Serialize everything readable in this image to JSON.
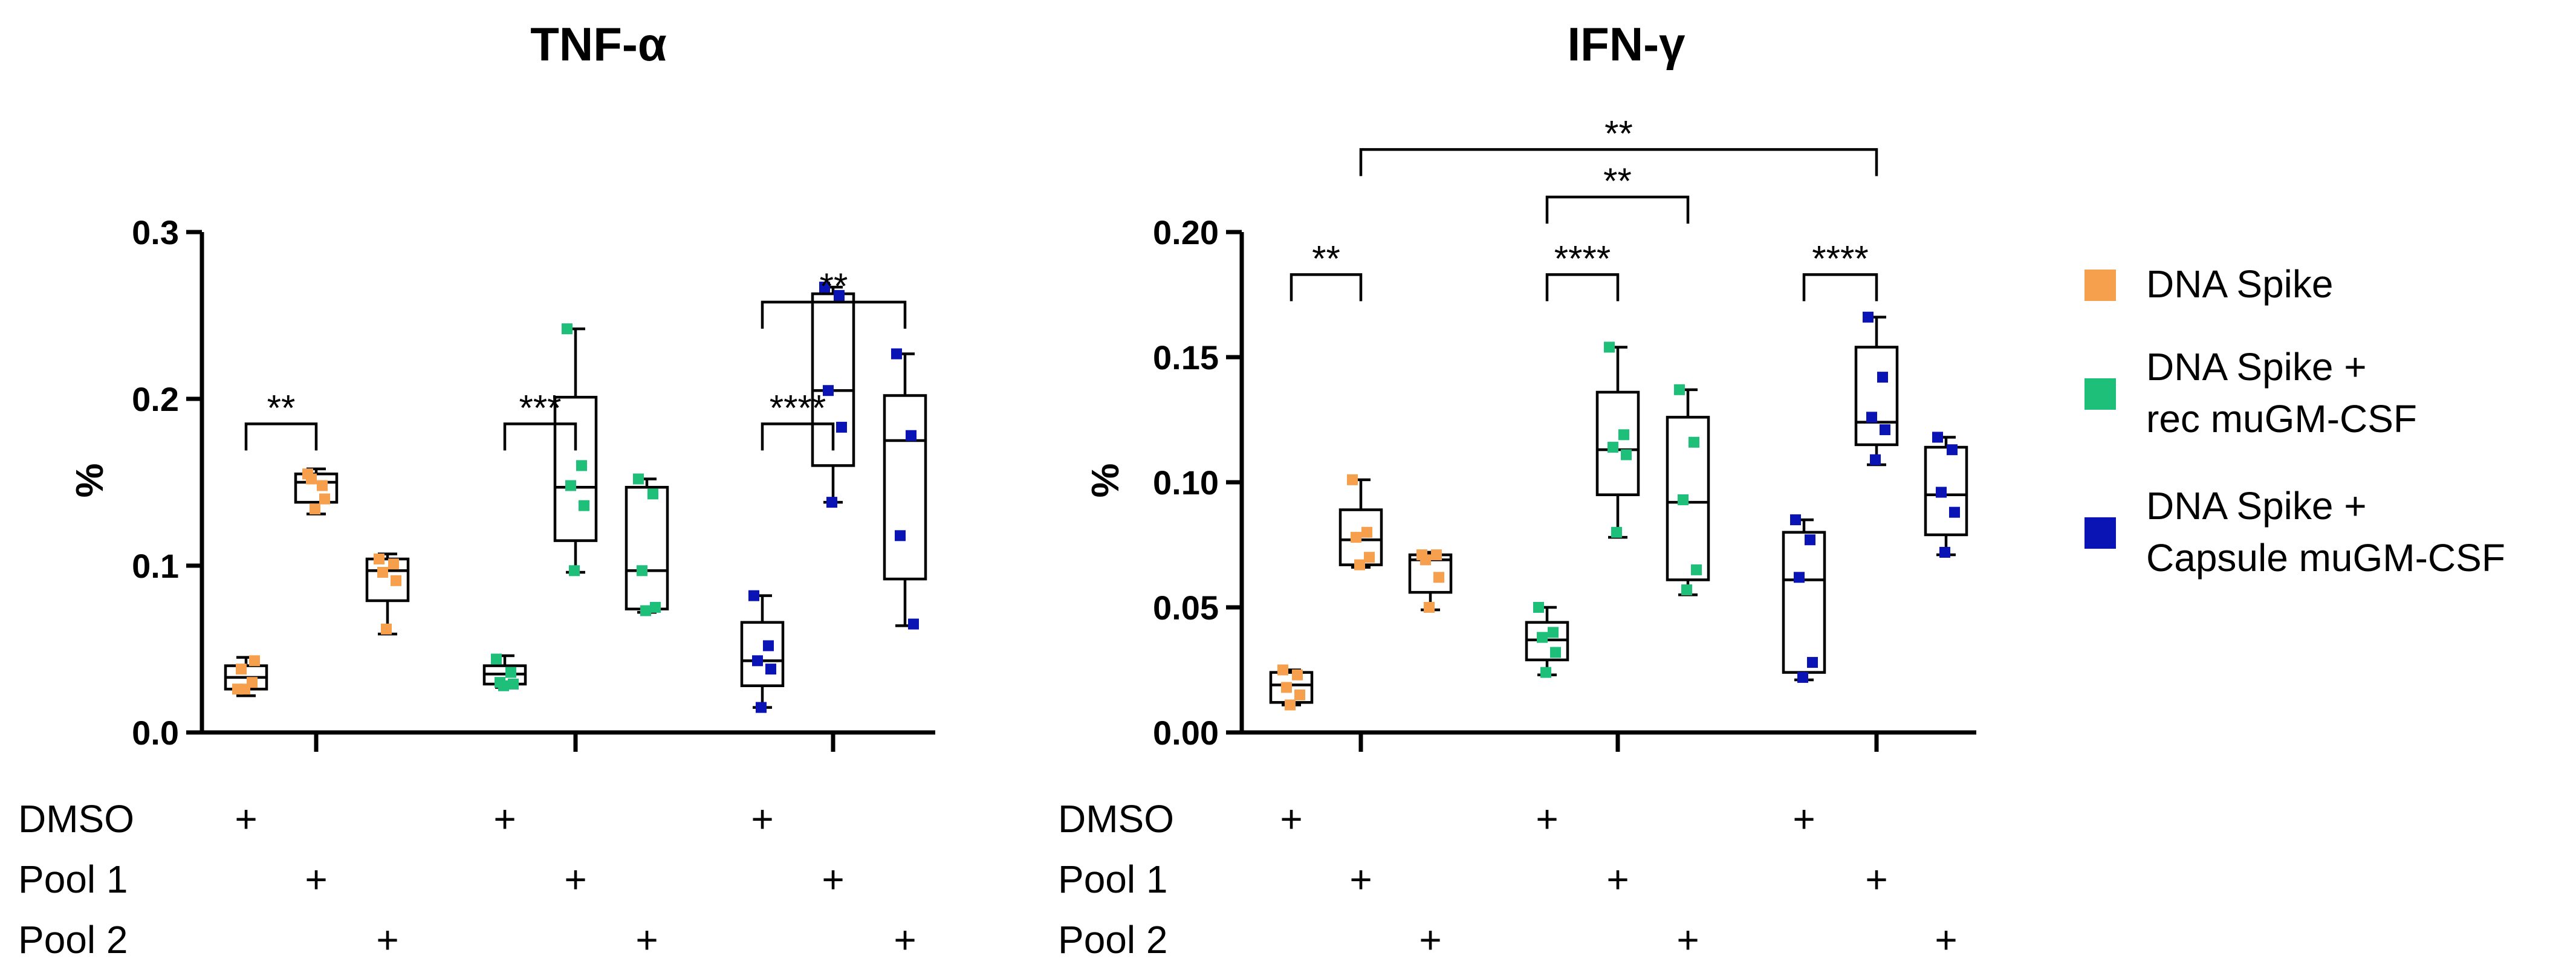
{
  "colors": {
    "DNA Spike": "#f6a04d",
    "DNA Spike + rec muGM-CSF": "#1dbf79",
    "DNA Spike + Capsule muGM-CSF": "#0a14b5"
  },
  "conditions": {
    "labels": [
      "DMSO",
      "Pool 1",
      "Pool 2"
    ],
    "mark": "+"
  },
  "legend": [
    {
      "group": "DNA Spike",
      "lines": [
        "DNA Spike"
      ]
    },
    {
      "group": "DNA Spike + rec muGM-CSF",
      "lines": [
        "DNA Spike +",
        "rec muGM-CSF"
      ]
    },
    {
      "group": "DNA Spike + Capsule muGM-CSF",
      "lines": [
        "DNA Spike +",
        "Capsule muGM-CSF"
      ]
    }
  ],
  "chart_data": [
    {
      "type": "box",
      "title": "TNF-α",
      "ylabel": "%",
      "ylim": [
        0,
        0.3
      ],
      "yticks": [
        0,
        0.1,
        0.2,
        0.3
      ],
      "tick_labels": [
        "0.0",
        "0.1",
        "0.2",
        "0.3"
      ],
      "boxes": [
        {
          "group": "DNA Spike",
          "condition": "DMSO",
          "min": 0.022,
          "q1": 0.026,
          "median": 0.033,
          "q3": 0.04,
          "max": 0.045,
          "points": [
            0.026,
            0.03,
            0.038,
            0.043,
            0.026
          ]
        },
        {
          "group": "DNA Spike",
          "condition": "Pool 1",
          "min": 0.131,
          "q1": 0.138,
          "median": 0.15,
          "q3": 0.155,
          "max": 0.158,
          "points": [
            0.155,
            0.148,
            0.152,
            0.14,
            0.134
          ]
        },
        {
          "group": "DNA Spike",
          "condition": "Pool 2",
          "min": 0.059,
          "q1": 0.079,
          "median": 0.097,
          "q3": 0.104,
          "max": 0.107,
          "points": [
            0.104,
            0.101,
            0.096,
            0.091,
            0.062
          ]
        },
        {
          "group": "DNA Spike + rec muGM-CSF",
          "condition": "DMSO",
          "min": 0.027,
          "q1": 0.029,
          "median": 0.035,
          "q3": 0.04,
          "max": 0.046,
          "points": [
            0.044,
            0.036,
            0.03,
            0.029,
            0.028
          ]
        },
        {
          "group": "DNA Spike + rec muGM-CSF",
          "condition": "Pool 1",
          "min": 0.096,
          "q1": 0.115,
          "median": 0.147,
          "q3": 0.201,
          "max": 0.242,
          "points": [
            0.242,
            0.16,
            0.148,
            0.136,
            0.097
          ]
        },
        {
          "group": "DNA Spike + rec muGM-CSF",
          "condition": "Pool 2",
          "min": 0.072,
          "q1": 0.074,
          "median": 0.097,
          "q3": 0.147,
          "max": 0.152,
          "points": [
            0.152,
            0.143,
            0.097,
            0.075,
            0.073
          ]
        },
        {
          "group": "DNA Spike + Capsule muGM-CSF",
          "condition": "DMSO",
          "min": 0.015,
          "q1": 0.028,
          "median": 0.043,
          "q3": 0.066,
          "max": 0.082,
          "points": [
            0.082,
            0.052,
            0.043,
            0.038,
            0.015
          ]
        },
        {
          "group": "DNA Spike + Capsule muGM-CSF",
          "condition": "Pool 1",
          "min": 0.138,
          "q1": 0.16,
          "median": 0.205,
          "q3": 0.263,
          "max": 0.267,
          "points": [
            0.267,
            0.262,
            0.205,
            0.183,
            0.138
          ]
        },
        {
          "group": "DNA Spike + Capsule muGM-CSF",
          "condition": "Pool 2",
          "min": 0.064,
          "q1": 0.092,
          "median": 0.175,
          "q3": 0.202,
          "max": 0.227,
          "points": [
            0.227,
            0.178,
            0.118,
            0.065
          ]
        }
      ],
      "significance": [
        {
          "from": 0,
          "to": 1,
          "level": 0.185,
          "label": "**"
        },
        {
          "from": 3,
          "to": 4,
          "level": 0.185,
          "label": "***"
        },
        {
          "from": 6,
          "to": 7,
          "level": 0.185,
          "label": "****"
        },
        {
          "from": 6,
          "to": 8,
          "level": 0.258,
          "label": "**"
        }
      ]
    },
    {
      "type": "box",
      "title": "IFN-γ",
      "ylabel": "%",
      "ylim": [
        0,
        0.2
      ],
      "yticks": [
        0,
        0.05,
        0.1,
        0.15,
        0.2
      ],
      "tick_labels": [
        "0.00",
        "0.05",
        "0.10",
        "0.15",
        "0.20"
      ],
      "boxes": [
        {
          "group": "DNA Spike",
          "condition": "DMSO",
          "min": 0.011,
          "q1": 0.012,
          "median": 0.019,
          "q3": 0.024,
          "max": 0.025,
          "points": [
            0.025,
            0.023,
            0.018,
            0.015,
            0.011
          ]
        },
        {
          "group": "DNA Spike",
          "condition": "Pool 1",
          "min": 0.066,
          "q1": 0.067,
          "median": 0.077,
          "q3": 0.089,
          "max": 0.101,
          "points": [
            0.101,
            0.08,
            0.078,
            0.07,
            0.067
          ]
        },
        {
          "group": "DNA Spike",
          "condition": "Pool 2",
          "min": 0.049,
          "q1": 0.056,
          "median": 0.069,
          "q3": 0.071,
          "max": 0.072,
          "points": [
            0.071,
            0.071,
            0.069,
            0.062,
            0.05
          ]
        },
        {
          "group": "DNA Spike + rec muGM-CSF",
          "condition": "DMSO",
          "min": 0.023,
          "q1": 0.029,
          "median": 0.037,
          "q3": 0.044,
          "max": 0.05,
          "points": [
            0.05,
            0.04,
            0.038,
            0.032,
            0.024
          ]
        },
        {
          "group": "DNA Spike + rec muGM-CSF",
          "condition": "Pool 1",
          "min": 0.078,
          "q1": 0.095,
          "median": 0.113,
          "q3": 0.136,
          "max": 0.154,
          "points": [
            0.154,
            0.119,
            0.114,
            0.111,
            0.08
          ]
        },
        {
          "group": "DNA Spike + rec muGM-CSF",
          "condition": "Pool 2",
          "min": 0.055,
          "q1": 0.061,
          "median": 0.092,
          "q3": 0.126,
          "max": 0.137,
          "points": [
            0.137,
            0.116,
            0.093,
            0.065,
            0.057
          ]
        },
        {
          "group": "DNA Spike + Capsule muGM-CSF",
          "condition": "DMSO",
          "min": 0.021,
          "q1": 0.024,
          "median": 0.061,
          "q3": 0.08,
          "max": 0.085,
          "points": [
            0.085,
            0.077,
            0.062,
            0.028,
            0.022
          ]
        },
        {
          "group": "DNA Spike + Capsule muGM-CSF",
          "condition": "Pool 1",
          "min": 0.107,
          "q1": 0.115,
          "median": 0.124,
          "q3": 0.154,
          "max": 0.166,
          "points": [
            0.166,
            0.142,
            0.126,
            0.121,
            0.109
          ]
        },
        {
          "group": "DNA Spike + Capsule muGM-CSF",
          "condition": "Pool 2",
          "min": 0.071,
          "q1": 0.079,
          "median": 0.095,
          "q3": 0.114,
          "max": 0.118,
          "points": [
            0.118,
            0.113,
            0.096,
            0.088,
            0.072
          ]
        }
      ],
      "significance": [
        {
          "from": 0,
          "to": 1,
          "level": 0.183,
          "label": "**"
        },
        {
          "from": 3,
          "to": 4,
          "level": 0.183,
          "label": "****"
        },
        {
          "from": 3,
          "to": 5,
          "level": 0.214,
          "label": "**"
        },
        {
          "from": 6,
          "to": 7,
          "level": 0.183,
          "label": "****"
        },
        {
          "from": 1,
          "to": 7,
          "level": 0.233,
          "label": "**"
        }
      ]
    }
  ]
}
